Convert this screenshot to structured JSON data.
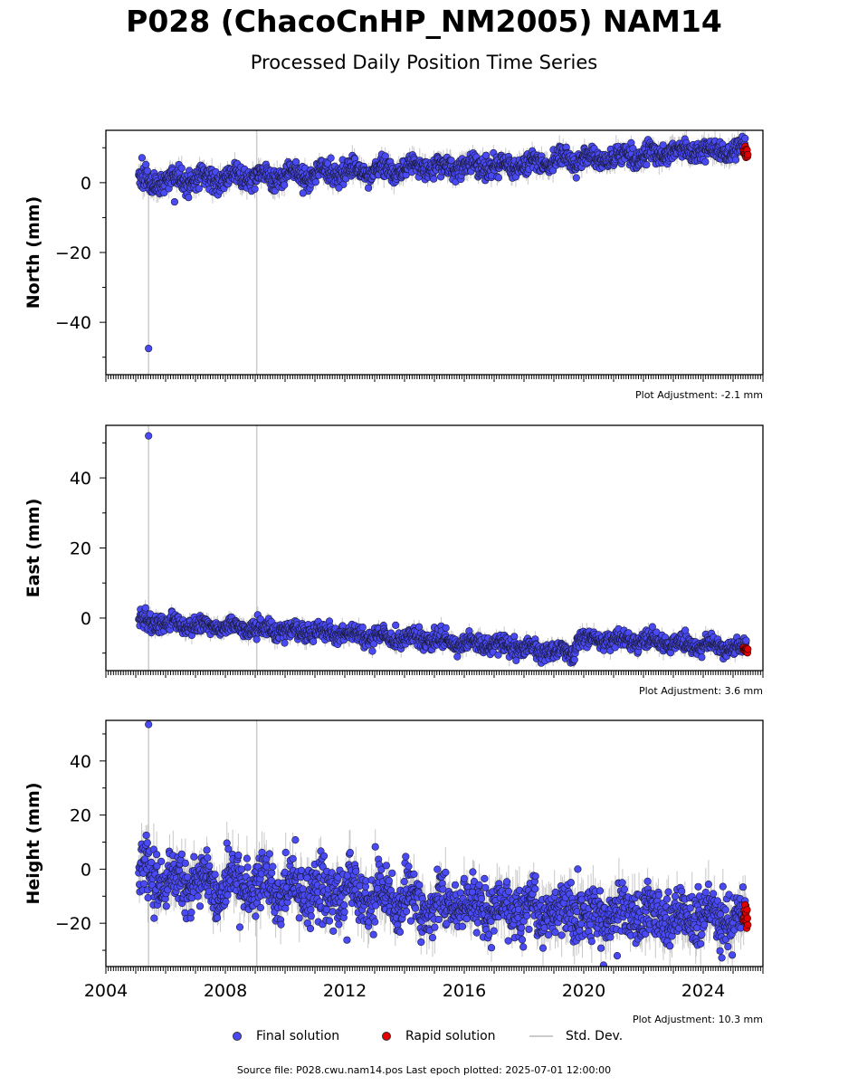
{
  "title": "P028 (ChacoCnHP_NM2005) NAM14",
  "subtitle": "Processed Daily Position Time Series",
  "legend": {
    "final_label": "Final solution",
    "rapid_label": "Rapid solution",
    "std_label": "Std. Dev."
  },
  "footer": "Source file: P028.cwu.nam14.pos  Last epoch plotted: 2025-07-01 12:00:00",
  "colors": {
    "final": "#4a4af5",
    "rapid": "#e00000",
    "std_dev": "#cccccc",
    "std_dev_dense": "#555555"
  },
  "chart_data": [
    {
      "type": "scatter",
      "ylabel": "North (mm)",
      "xlim": [
        2004,
        2026
      ],
      "ylim": [
        -55,
        15
      ],
      "yticks": [
        0,
        -20,
        -40
      ],
      "ytick_labels": [
        "0",
        "−20",
        "−40"
      ],
      "adjustment_note": "Plot Adjustment: -2.1 mm",
      "trend": [
        [
          2005.1,
          0
        ],
        [
          2006,
          0.5
        ],
        [
          2010,
          2
        ],
        [
          2014,
          4
        ],
        [
          2018,
          5
        ],
        [
          2020,
          6.5
        ],
        [
          2023,
          9
        ],
        [
          2025.45,
          9.5
        ]
      ],
      "noise_sd": 1.5,
      "seasonal_amp": 1.2,
      "std_dev_mm": 2.5,
      "outliers": [
        {
          "x": 2005.43,
          "y": -47.5
        },
        {
          "x": 2006.3,
          "y": -5.5
        },
        {
          "x": 2010.6,
          "y": -3
        },
        {
          "x": 2011.8,
          "y": -1.5
        }
      ],
      "rapid": {
        "x_range": [
          2025.35,
          2025.5
        ],
        "y": 8.5
      },
      "gaps": [
        {
          "x": 2005.43,
          "y_range": [
            -55,
            5
          ]
        },
        {
          "x": 2009.05,
          "y_range": [
            -55,
            15
          ]
        }
      ]
    },
    {
      "type": "scatter",
      "ylabel": "East (mm)",
      "xlim": [
        2004,
        2026
      ],
      "ylim": [
        -15,
        55
      ],
      "yticks": [
        40,
        20,
        0
      ],
      "ytick_labels": [
        "40",
        "20",
        "0"
      ],
      "adjustment_note": "Plot Adjustment: 3.6 mm",
      "trend": [
        [
          2005.1,
          -1
        ],
        [
          2009,
          -3
        ],
        [
          2012,
          -4.5
        ],
        [
          2016,
          -7
        ],
        [
          2019.7,
          -10
        ],
        [
          2019.75,
          -6
        ],
        [
          2022,
          -6.5
        ],
        [
          2025.45,
          -8.5
        ]
      ],
      "noise_sd": 1.2,
      "seasonal_amp": 0.8,
      "std_dev_mm": 2,
      "outliers": [
        {
          "x": 2005.43,
          "y": 52
        },
        {
          "x": 2023.4,
          "y": -3.5
        },
        {
          "x": 2022.3,
          "y": -2.5
        }
      ],
      "rapid": {
        "x_range": [
          2025.35,
          2025.5
        ],
        "y": -9
      },
      "gaps": [
        {
          "x": 2005.43,
          "y_range": [
            -15,
            55
          ]
        },
        {
          "x": 2009.05,
          "y_range": [
            -15,
            55
          ]
        }
      ]
    },
    {
      "type": "scatter",
      "ylabel": "Height (mm)",
      "xlim": [
        2004,
        2026
      ],
      "ylim": [
        -36,
        55
      ],
      "yticks": [
        40,
        20,
        0,
        -20
      ],
      "ytick_labels": [
        "40",
        "20",
        "0",
        "−20"
      ],
      "xticks": [
        2004,
        2008,
        2012,
        2016,
        2020,
        2024
      ],
      "xtick_labels": [
        "2004",
        "2008",
        "2012",
        "2016",
        "2020",
        "2024"
      ],
      "adjustment_note": "Plot Adjustment: 10.3 mm",
      "trend": [
        [
          2005.1,
          -3
        ],
        [
          2008,
          -6
        ],
        [
          2012,
          -9
        ],
        [
          2016,
          -13
        ],
        [
          2020,
          -17
        ],
        [
          2025.45,
          -18
        ]
      ],
      "noise_sd": 5,
      "seasonal_amp": 3,
      "std_dev_mm": 7,
      "outliers": [
        {
          "x": 2005.43,
          "y": 53.5
        },
        {
          "x": 2019.8,
          "y": 0
        }
      ],
      "rapid": {
        "x_range": [
          2025.35,
          2025.5
        ],
        "y": -17
      },
      "gaps": [
        {
          "x": 2005.43,
          "y_range": [
            -36,
            55
          ]
        },
        {
          "x": 2009.05,
          "y_range": [
            -36,
            55
          ]
        }
      ]
    }
  ]
}
